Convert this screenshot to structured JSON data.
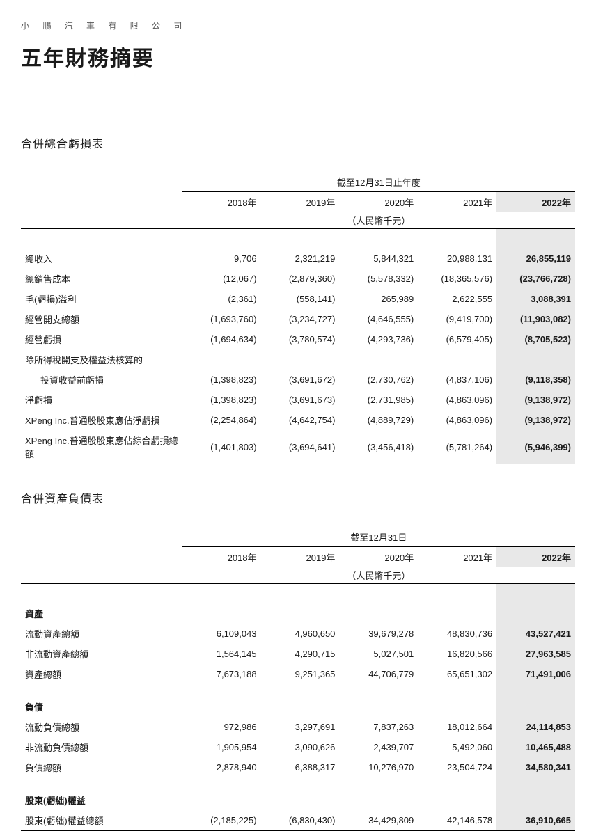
{
  "company": "小 鵬 汽 車 有 限 公 司",
  "pageTitle": "五年財務摘要",
  "section1": {
    "title": "合併綜合虧損表",
    "period": "截至12月31日止年度",
    "unit": "（人民幣千元）",
    "years": [
      "2018年",
      "2019年",
      "2020年",
      "2021年",
      "2022年"
    ],
    "rows": [
      {
        "label": "總收入",
        "v": [
          "9,706",
          "2,321,219",
          "5,844,321",
          "20,988,131",
          "26,855,119"
        ]
      },
      {
        "label": "總銷售成本",
        "v": [
          "(12,067)",
          "(2,879,360)",
          "(5,578,332)",
          "(18,365,576)",
          "(23,766,728)"
        ]
      },
      {
        "label": "毛(虧損)溢利",
        "v": [
          "(2,361)",
          "(558,141)",
          "265,989",
          "2,622,555",
          "3,088,391"
        ]
      },
      {
        "label": "經營開支總額",
        "v": [
          "(1,693,760)",
          "(3,234,727)",
          "(4,646,555)",
          "(9,419,700)",
          "(11,903,082)"
        ]
      },
      {
        "label": "經營虧損",
        "v": [
          "(1,694,634)",
          "(3,780,574)",
          "(4,293,736)",
          "(6,579,405)",
          "(8,705,523)"
        ]
      },
      {
        "label": "除所得稅開支及權益法核算的",
        "v": [
          "",
          "",
          "",
          "",
          ""
        ],
        "noval": true
      },
      {
        "label": "投資收益前虧損",
        "v": [
          "(1,398,823)",
          "(3,691,672)",
          "(2,730,762)",
          "(4,837,106)",
          "(9,118,358)"
        ],
        "indent": true
      },
      {
        "label": "淨虧損",
        "v": [
          "(1,398,823)",
          "(3,691,673)",
          "(2,731,985)",
          "(4,863,096)",
          "(9,138,972)"
        ]
      },
      {
        "label": "XPeng Inc.普通股股東應佔淨虧損",
        "v": [
          "(2,254,864)",
          "(4,642,754)",
          "(4,889,729)",
          "(4,863,096)",
          "(9,138,972)"
        ]
      },
      {
        "label": "XPeng Inc.普通股股東應佔綜合虧損總額",
        "v": [
          "(1,401,803)",
          "(3,694,641)",
          "(3,456,418)",
          "(5,781,264)",
          "(5,946,399)"
        ]
      }
    ]
  },
  "section2": {
    "title": "合併資產負債表",
    "period": "截至12月31日",
    "unit": "（人民幣千元）",
    "years": [
      "2018年",
      "2019年",
      "2020年",
      "2021年",
      "2022年"
    ],
    "groups": [
      {
        "header": "資產",
        "rows": [
          {
            "label": "流動資產總額",
            "v": [
              "6,109,043",
              "4,960,650",
              "39,679,278",
              "48,830,736",
              "43,527,421"
            ]
          },
          {
            "label": "非流動資產總額",
            "v": [
              "1,564,145",
              "4,290,715",
              "5,027,501",
              "16,820,566",
              "27,963,585"
            ]
          },
          {
            "label": "資產總額",
            "v": [
              "7,673,188",
              "9,251,365",
              "44,706,779",
              "65,651,302",
              "71,491,006"
            ]
          }
        ]
      },
      {
        "header": "負債",
        "rows": [
          {
            "label": "流動負債總額",
            "v": [
              "972,986",
              "3,297,691",
              "7,837,263",
              "18,012,664",
              "24,114,853"
            ]
          },
          {
            "label": "非流動負債總額",
            "v": [
              "1,905,954",
              "3,090,626",
              "2,439,707",
              "5,492,060",
              "10,465,488"
            ]
          },
          {
            "label": "負債總額",
            "v": [
              "2,878,940",
              "6,388,317",
              "10,276,970",
              "23,504,724",
              "34,580,341"
            ]
          }
        ]
      },
      {
        "header": "股東(虧絀)權益",
        "rows": [
          {
            "label": "股東(虧絀)權益總額",
            "v": [
              "(2,185,225)",
              "(6,830,430)",
              "34,429,809",
              "42,146,578",
              "36,910,665"
            ]
          }
        ]
      }
    ]
  },
  "colors": {
    "highlight_bg": "#e8e8e8",
    "text": "#1a1a1a",
    "border": "#000000"
  }
}
